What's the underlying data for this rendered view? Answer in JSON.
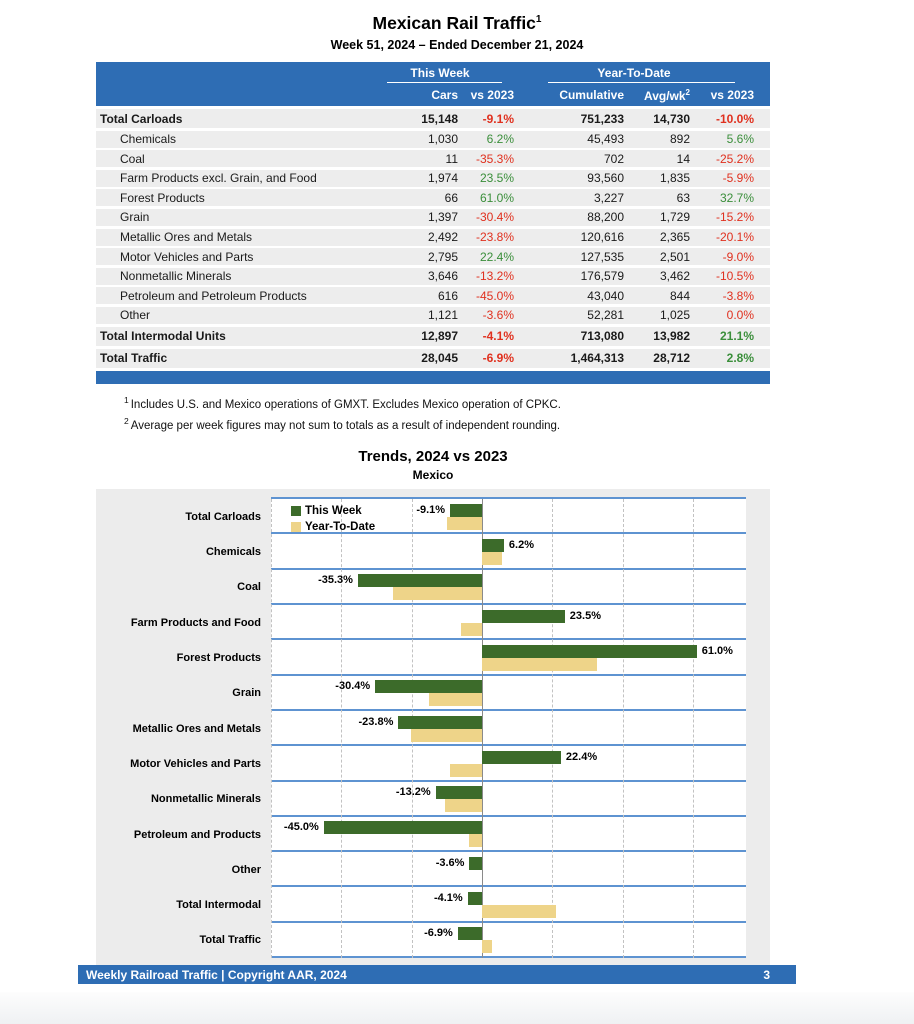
{
  "report": {
    "title": "Mexican Rail Traffic",
    "title_sup": "1",
    "subtitle": "Week 51, 2024 – Ended December 21, 2024"
  },
  "table": {
    "group_this_week": "This Week",
    "group_ytd": "Year-To-Date",
    "columns": [
      "Cars",
      "vs 2023",
      "Cumulative",
      "Avg/wk",
      "vs 2023"
    ],
    "avgwk_sup": "2",
    "rows": [
      {
        "label": "Total Carloads",
        "bold": true,
        "cars": "15,148",
        "cars_vs": "-9.1%",
        "cumulative": "751,233",
        "avg_wk": "14,730",
        "ytd_vs": "-10.0%"
      },
      {
        "label": "Chemicals",
        "bold": false,
        "cars": "1,030",
        "cars_vs": "6.2%",
        "cumulative": "45,493",
        "avg_wk": "892",
        "ytd_vs": "5.6%"
      },
      {
        "label": "Coal",
        "bold": false,
        "cars": "11",
        "cars_vs": "-35.3%",
        "cumulative": "702",
        "avg_wk": "14",
        "ytd_vs": "-25.2%"
      },
      {
        "label": "Farm Products excl. Grain, and Food",
        "bold": false,
        "cars": "1,974",
        "cars_vs": "23.5%",
        "cumulative": "93,560",
        "avg_wk": "1,835",
        "ytd_vs": "-5.9%"
      },
      {
        "label": "Forest Products",
        "bold": false,
        "cars": "66",
        "cars_vs": "61.0%",
        "cumulative": "3,227",
        "avg_wk": "63",
        "ytd_vs": "32.7%"
      },
      {
        "label": "Grain",
        "bold": false,
        "cars": "1,397",
        "cars_vs": "-30.4%",
        "cumulative": "88,200",
        "avg_wk": "1,729",
        "ytd_vs": "-15.2%"
      },
      {
        "label": "Metallic Ores and Metals",
        "bold": false,
        "cars": "2,492",
        "cars_vs": "-23.8%",
        "cumulative": "120,616",
        "avg_wk": "2,365",
        "ytd_vs": "-20.1%"
      },
      {
        "label": "Motor Vehicles and Parts",
        "bold": false,
        "cars": "2,795",
        "cars_vs": "22.4%",
        "cumulative": "127,535",
        "avg_wk": "2,501",
        "ytd_vs": "-9.0%"
      },
      {
        "label": "Nonmetallic Minerals",
        "bold": false,
        "cars": "3,646",
        "cars_vs": "-13.2%",
        "cumulative": "176,579",
        "avg_wk": "3,462",
        "ytd_vs": "-10.5%"
      },
      {
        "label": "Petroleum and Petroleum Products",
        "bold": false,
        "cars": "616",
        "cars_vs": "-45.0%",
        "cumulative": "43,040",
        "avg_wk": "844",
        "ytd_vs": "-3.8%"
      },
      {
        "label": "Other",
        "bold": false,
        "cars": "1,121",
        "cars_vs": "-3.6%",
        "cumulative": "52,281",
        "avg_wk": "1,025",
        "ytd_vs": "0.0%"
      },
      {
        "label": "Total Intermodal Units",
        "bold": true,
        "cars": "12,897",
        "cars_vs": "-4.1%",
        "cumulative": "713,080",
        "avg_wk": "13,982",
        "ytd_vs": "21.1%"
      },
      {
        "label": "Total Traffic",
        "bold": true,
        "cars": "28,045",
        "cars_vs": "-6.9%",
        "cumulative": "1,464,313",
        "avg_wk": "28,712",
        "ytd_vs": "2.8%"
      }
    ]
  },
  "footnotes": [
    {
      "sup": "1",
      "text": "Includes U.S. and Mexico operations of GMXT. Excludes Mexico operation of CPKC."
    },
    {
      "sup": "2",
      "text": "Average per week figures may not sum to totals as a result of independent rounding."
    }
  ],
  "chart_data": {
    "type": "bar",
    "orientation": "horizontal",
    "title": "Trends, 2024 vs 2023",
    "subtitle": "Mexico",
    "categories": [
      "Total Carloads",
      "Chemicals",
      "Coal",
      "Farm Products and Food",
      "Forest Products",
      "Grain",
      "Metallic Ores and Metals",
      "Motor Vehicles and Parts",
      "Nonmetallic Minerals",
      "Petroleum and Products",
      "Other",
      "Total Intermodal",
      "Total Traffic"
    ],
    "series": [
      {
        "name": "This Week",
        "color": "#3c6b2a",
        "values": [
          -9.1,
          6.2,
          -35.3,
          23.5,
          61.0,
          -30.4,
          -23.8,
          22.4,
          -13.2,
          -45.0,
          -3.6,
          -4.1,
          -6.9
        ]
      },
      {
        "name": "Year-To-Date",
        "color": "#eed489",
        "values": [
          -10.0,
          5.6,
          -25.2,
          -5.9,
          32.7,
          -15.2,
          -20.1,
          -9.0,
          -10.5,
          -3.8,
          0.0,
          21.1,
          2.8
        ]
      }
    ],
    "data_labels_series": "This Week",
    "xlim": [
      -60,
      75
    ],
    "x_tick_values": [
      -60,
      -40,
      -20,
      0,
      20,
      40,
      60
    ],
    "x_ticks": [
      "-60%",
      "-40%",
      "-20%",
      "0%",
      "20%",
      "40%",
      "60%"
    ],
    "grid": "vertical-dashed",
    "legend_position": "inside-top-left",
    "colors": {
      "separator_blue": "#5e93d1",
      "plot_bg": "#ffffff",
      "chart_bg": "#ececec"
    }
  },
  "footer": {
    "left": "Weekly Railroad Traffic | Copyright AAR, 2024",
    "page": "3"
  }
}
